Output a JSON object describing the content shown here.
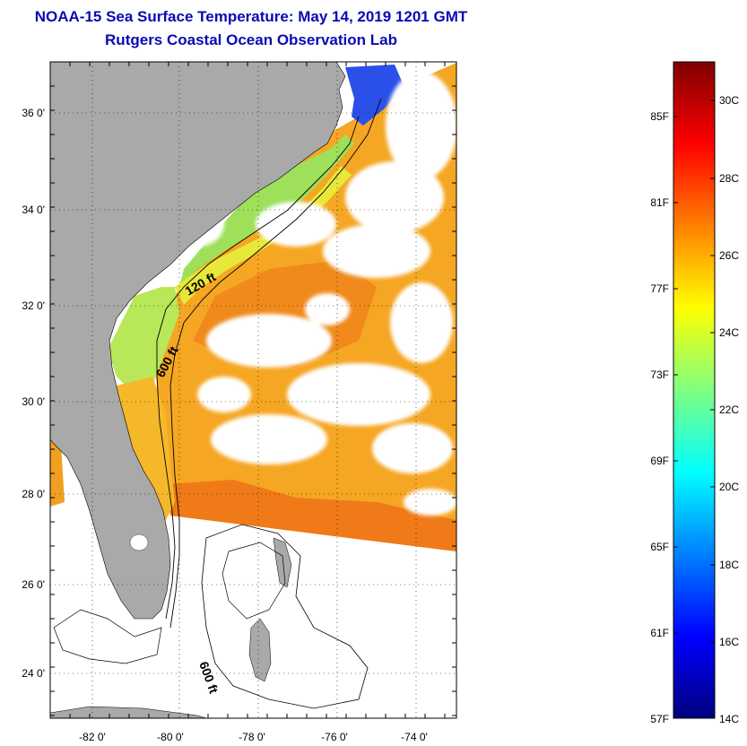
{
  "header": {
    "title": "NOAA-15 Sea Surface Temperature:  May 14, 2019 1201 GMT",
    "subtitle": "Rutgers Coastal Ocean Observation Lab"
  },
  "map": {
    "lon_ticks": [
      "-82 0'",
      "-80 0'",
      "-78 0'",
      "-76 0'",
      "-74 0'"
    ],
    "lat_ticks": [
      "36 0'",
      "34 0'",
      "32 0'",
      "30 0'",
      "28 0'",
      "26 0'",
      "24 0'"
    ],
    "isobaths": [
      "120 ft",
      "600 ft",
      "600 ft"
    ]
  },
  "colorbar": {
    "f_labels": [
      "85F",
      "81F",
      "77F",
      "73F",
      "69F",
      "65F",
      "61F",
      "57F"
    ],
    "c_labels": [
      "30C",
      "28C",
      "26C",
      "24C",
      "22C",
      "20C",
      "18C",
      "16C",
      "14C"
    ],
    "colors": [
      "#00007f",
      "#0000ff",
      "#0080ff",
      "#00ffff",
      "#80ff80",
      "#ffff00",
      "#ff8000",
      "#ff0000",
      "#7f0000"
    ]
  }
}
